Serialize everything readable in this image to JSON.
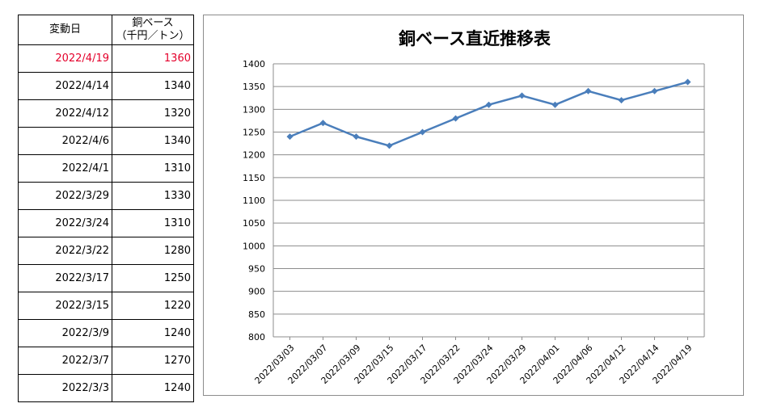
{
  "table": {
    "header_date": "変動日",
    "header_price_line1": "銅ベース",
    "header_price_line2": "（千円／トン）",
    "highlight_color": "#e4002b",
    "rows": [
      {
        "date": "2022/4/19",
        "price": "1360",
        "highlight": true
      },
      {
        "date": "2022/4/14",
        "price": "1340",
        "highlight": false
      },
      {
        "date": "2022/4/12",
        "price": "1320",
        "highlight": false
      },
      {
        "date": "2022/4/6",
        "price": "1340",
        "highlight": false
      },
      {
        "date": "2022/4/1",
        "price": "1310",
        "highlight": false
      },
      {
        "date": "2022/3/29",
        "price": "1330",
        "highlight": false
      },
      {
        "date": "2022/3/24",
        "price": "1310",
        "highlight": false
      },
      {
        "date": "2022/3/22",
        "price": "1280",
        "highlight": false
      },
      {
        "date": "2022/3/17",
        "price": "1250",
        "highlight": false
      },
      {
        "date": "2022/3/15",
        "price": "1220",
        "highlight": false
      },
      {
        "date": "2022/3/9",
        "price": "1240",
        "highlight": false
      },
      {
        "date": "2022/3/7",
        "price": "1270",
        "highlight": false
      },
      {
        "date": "2022/3/3",
        "price": "1240",
        "highlight": false
      }
    ]
  },
  "chart_data": {
    "type": "line",
    "title": "銅ベース直近推移表",
    "xlabel": "",
    "ylabel": "",
    "categories": [
      "2022/03/03",
      "2022/03/07",
      "2022/03/09",
      "2022/03/15",
      "2022/03/17",
      "2022/03/22",
      "2022/03/24",
      "2022/03/29",
      "2022/04/01",
      "2022/04/06",
      "2022/04/12",
      "2022/04/14",
      "2022/04/19"
    ],
    "series": [
      {
        "values": [
          1240,
          1270,
          1240,
          1220,
          1250,
          1280,
          1310,
          1330,
          1310,
          1340,
          1320,
          1340,
          1360
        ]
      }
    ],
    "ylim": [
      800,
      1400
    ],
    "ytick_step": 50,
    "grid": true,
    "legend": "none",
    "line_color": "#4a7ebb",
    "marker": "diamond"
  }
}
